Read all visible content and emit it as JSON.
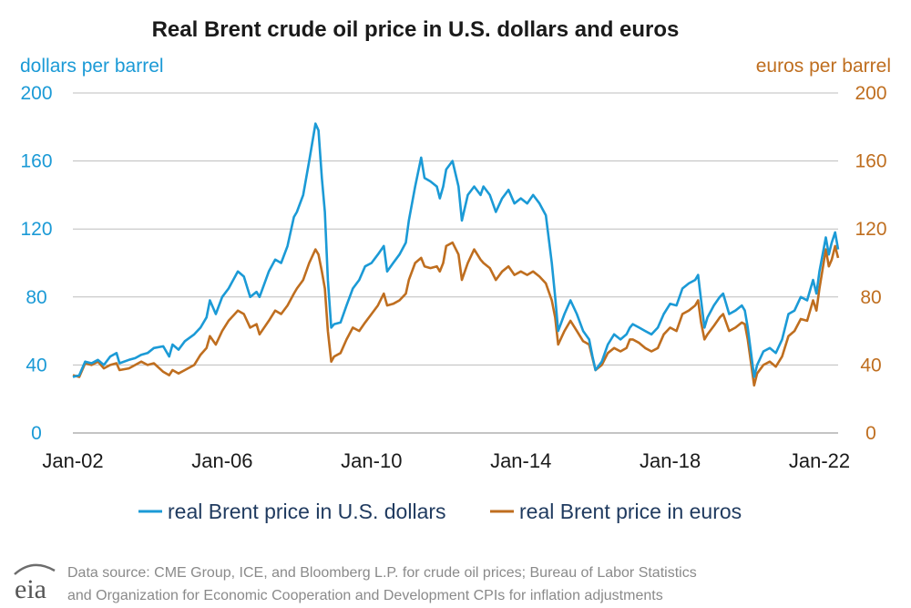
{
  "chart_data": {
    "type": "line",
    "title": "Real Brent crude oil price in U.S. dollars and euros",
    "y_left_label": "dollars per barrel",
    "y_right_label": "euros per barrel",
    "x_ticks": [
      "Jan-02",
      "Jan-06",
      "Jan-10",
      "Jan-14",
      "Jan-18",
      "Jan-22"
    ],
    "x_range": [
      2002.0,
      2022.5
    ],
    "y_ticks": [
      "0",
      "40",
      "80",
      "120",
      "160",
      "200"
    ],
    "ylim": [
      0,
      200
    ],
    "grid": true,
    "legend_position": "bottom",
    "colors": {
      "usd": "#1b9ad6",
      "eur": "#bf6e1f",
      "grid": "#bdbdbd",
      "left_axis": "#1b9ad6",
      "right_axis": "#bf6e1f"
    },
    "series": [
      {
        "name": "real Brent price in U.S. dollars",
        "key": "usd",
        "points": [
          [
            2002.0,
            33
          ],
          [
            2002.17,
            34
          ],
          [
            2002.33,
            42
          ],
          [
            2002.5,
            41
          ],
          [
            2002.67,
            43
          ],
          [
            2002.83,
            40
          ],
          [
            2003.0,
            45
          ],
          [
            2003.17,
            47
          ],
          [
            2003.25,
            41
          ],
          [
            2003.5,
            43
          ],
          [
            2003.67,
            44
          ],
          [
            2003.83,
            46
          ],
          [
            2004.0,
            47
          ],
          [
            2004.17,
            50
          ],
          [
            2004.42,
            51
          ],
          [
            2004.58,
            45
          ],
          [
            2004.67,
            52
          ],
          [
            2004.83,
            49
          ],
          [
            2005.0,
            54
          ],
          [
            2005.25,
            58
          ],
          [
            2005.42,
            62
          ],
          [
            2005.58,
            68
          ],
          [
            2005.67,
            78
          ],
          [
            2005.83,
            70
          ],
          [
            2006.0,
            80
          ],
          [
            2006.17,
            85
          ],
          [
            2006.42,
            95
          ],
          [
            2006.58,
            92
          ],
          [
            2006.75,
            80
          ],
          [
            2006.92,
            83
          ],
          [
            2007.0,
            80
          ],
          [
            2007.25,
            95
          ],
          [
            2007.42,
            102
          ],
          [
            2007.58,
            100
          ],
          [
            2007.75,
            110
          ],
          [
            2007.92,
            127
          ],
          [
            2008.0,
            130
          ],
          [
            2008.17,
            140
          ],
          [
            2008.33,
            160
          ],
          [
            2008.5,
            182
          ],
          [
            2008.58,
            178
          ],
          [
            2008.67,
            150
          ],
          [
            2008.75,
            130
          ],
          [
            2008.83,
            90
          ],
          [
            2008.92,
            62
          ],
          [
            2009.0,
            64
          ],
          [
            2009.17,
            65
          ],
          [
            2009.33,
            75
          ],
          [
            2009.5,
            85
          ],
          [
            2009.67,
            90
          ],
          [
            2009.83,
            98
          ],
          [
            2010.0,
            100
          ],
          [
            2010.17,
            105
          ],
          [
            2010.33,
            110
          ],
          [
            2010.42,
            95
          ],
          [
            2010.58,
            100
          ],
          [
            2010.75,
            105
          ],
          [
            2010.92,
            112
          ],
          [
            2011.0,
            125
          ],
          [
            2011.17,
            145
          ],
          [
            2011.33,
            162
          ],
          [
            2011.42,
            150
          ],
          [
            2011.58,
            148
          ],
          [
            2011.75,
            145
          ],
          [
            2011.83,
            138
          ],
          [
            2011.92,
            145
          ],
          [
            2012.0,
            155
          ],
          [
            2012.17,
            160
          ],
          [
            2012.33,
            145
          ],
          [
            2012.42,
            125
          ],
          [
            2012.58,
            140
          ],
          [
            2012.75,
            145
          ],
          [
            2012.92,
            140
          ],
          [
            2013.0,
            145
          ],
          [
            2013.17,
            140
          ],
          [
            2013.33,
            130
          ],
          [
            2013.5,
            138
          ],
          [
            2013.67,
            143
          ],
          [
            2013.83,
            135
          ],
          [
            2014.0,
            138
          ],
          [
            2014.17,
            135
          ],
          [
            2014.33,
            140
          ],
          [
            2014.5,
            135
          ],
          [
            2014.67,
            128
          ],
          [
            2014.83,
            100
          ],
          [
            2014.92,
            80
          ],
          [
            2015.0,
            60
          ],
          [
            2015.17,
            70
          ],
          [
            2015.33,
            78
          ],
          [
            2015.5,
            70
          ],
          [
            2015.67,
            60
          ],
          [
            2015.83,
            55
          ],
          [
            2015.92,
            45
          ],
          [
            2016.0,
            37
          ],
          [
            2016.17,
            42
          ],
          [
            2016.33,
            52
          ],
          [
            2016.5,
            58
          ],
          [
            2016.67,
            55
          ],
          [
            2016.83,
            58
          ],
          [
            2016.92,
            62
          ],
          [
            2017.0,
            64
          ],
          [
            2017.17,
            62
          ],
          [
            2017.33,
            60
          ],
          [
            2017.5,
            58
          ],
          [
            2017.67,
            62
          ],
          [
            2017.83,
            70
          ],
          [
            2018.0,
            76
          ],
          [
            2018.17,
            75
          ],
          [
            2018.33,
            85
          ],
          [
            2018.5,
            88
          ],
          [
            2018.67,
            90
          ],
          [
            2018.75,
            93
          ],
          [
            2018.83,
            78
          ],
          [
            2018.92,
            62
          ],
          [
            2019.0,
            68
          ],
          [
            2019.17,
            75
          ],
          [
            2019.33,
            80
          ],
          [
            2019.42,
            82
          ],
          [
            2019.58,
            70
          ],
          [
            2019.75,
            72
          ],
          [
            2019.92,
            75
          ],
          [
            2020.0,
            72
          ],
          [
            2020.08,
            62
          ],
          [
            2020.25,
            33
          ],
          [
            2020.33,
            40
          ],
          [
            2020.5,
            48
          ],
          [
            2020.67,
            50
          ],
          [
            2020.83,
            47
          ],
          [
            2021.0,
            55
          ],
          [
            2021.17,
            70
          ],
          [
            2021.33,
            72
          ],
          [
            2021.5,
            80
          ],
          [
            2021.67,
            78
          ],
          [
            2021.83,
            90
          ],
          [
            2021.92,
            82
          ],
          [
            2022.0,
            95
          ],
          [
            2022.17,
            115
          ],
          [
            2022.25,
            105
          ],
          [
            2022.33,
            112
          ],
          [
            2022.42,
            118
          ],
          [
            2022.5,
            108
          ]
        ]
      },
      {
        "name": "real Brent price in euros",
        "key": "eur",
        "points": [
          [
            2002.0,
            34
          ],
          [
            2002.17,
            33
          ],
          [
            2002.33,
            41
          ],
          [
            2002.5,
            40
          ],
          [
            2002.67,
            42
          ],
          [
            2002.83,
            38
          ],
          [
            2003.0,
            40
          ],
          [
            2003.17,
            41
          ],
          [
            2003.25,
            37
          ],
          [
            2003.5,
            38
          ],
          [
            2003.67,
            40
          ],
          [
            2003.83,
            42
          ],
          [
            2004.0,
            40
          ],
          [
            2004.17,
            41
          ],
          [
            2004.42,
            36
          ],
          [
            2004.58,
            34
          ],
          [
            2004.67,
            37
          ],
          [
            2004.83,
            35
          ],
          [
            2005.0,
            37
          ],
          [
            2005.25,
            40
          ],
          [
            2005.42,
            46
          ],
          [
            2005.58,
            50
          ],
          [
            2005.67,
            57
          ],
          [
            2005.83,
            52
          ],
          [
            2006.0,
            60
          ],
          [
            2006.17,
            66
          ],
          [
            2006.42,
            72
          ],
          [
            2006.58,
            70
          ],
          [
            2006.75,
            62
          ],
          [
            2006.92,
            64
          ],
          [
            2007.0,
            58
          ],
          [
            2007.25,
            66
          ],
          [
            2007.42,
            72
          ],
          [
            2007.58,
            70
          ],
          [
            2007.75,
            75
          ],
          [
            2007.92,
            82
          ],
          [
            2008.0,
            85
          ],
          [
            2008.17,
            90
          ],
          [
            2008.33,
            100
          ],
          [
            2008.5,
            108
          ],
          [
            2008.58,
            105
          ],
          [
            2008.67,
            95
          ],
          [
            2008.75,
            85
          ],
          [
            2008.83,
            60
          ],
          [
            2008.92,
            42
          ],
          [
            2009.0,
            45
          ],
          [
            2009.17,
            47
          ],
          [
            2009.33,
            55
          ],
          [
            2009.5,
            62
          ],
          [
            2009.67,
            60
          ],
          [
            2009.83,
            65
          ],
          [
            2010.0,
            70
          ],
          [
            2010.17,
            75
          ],
          [
            2010.33,
            82
          ],
          [
            2010.42,
            75
          ],
          [
            2010.58,
            76
          ],
          [
            2010.75,
            78
          ],
          [
            2010.92,
            82
          ],
          [
            2011.0,
            90
          ],
          [
            2011.17,
            100
          ],
          [
            2011.33,
            103
          ],
          [
            2011.42,
            98
          ],
          [
            2011.58,
            97
          ],
          [
            2011.75,
            98
          ],
          [
            2011.83,
            95
          ],
          [
            2011.92,
            100
          ],
          [
            2012.0,
            110
          ],
          [
            2012.17,
            112
          ],
          [
            2012.33,
            105
          ],
          [
            2012.42,
            90
          ],
          [
            2012.58,
            100
          ],
          [
            2012.75,
            108
          ],
          [
            2012.92,
            102
          ],
          [
            2013.0,
            100
          ],
          [
            2013.17,
            97
          ],
          [
            2013.33,
            90
          ],
          [
            2013.5,
            95
          ],
          [
            2013.67,
            98
          ],
          [
            2013.83,
            93
          ],
          [
            2014.0,
            95
          ],
          [
            2014.17,
            93
          ],
          [
            2014.33,
            95
          ],
          [
            2014.5,
            92
          ],
          [
            2014.67,
            88
          ],
          [
            2014.83,
            78
          ],
          [
            2014.92,
            68
          ],
          [
            2015.0,
            52
          ],
          [
            2015.17,
            60
          ],
          [
            2015.33,
            66
          ],
          [
            2015.5,
            60
          ],
          [
            2015.67,
            54
          ],
          [
            2015.83,
            52
          ],
          [
            2015.92,
            44
          ],
          [
            2016.0,
            37
          ],
          [
            2016.17,
            40
          ],
          [
            2016.33,
            47
          ],
          [
            2016.5,
            50
          ],
          [
            2016.67,
            48
          ],
          [
            2016.83,
            50
          ],
          [
            2016.92,
            55
          ],
          [
            2017.0,
            55
          ],
          [
            2017.17,
            53
          ],
          [
            2017.33,
            50
          ],
          [
            2017.5,
            48
          ],
          [
            2017.67,
            50
          ],
          [
            2017.83,
            58
          ],
          [
            2018.0,
            62
          ],
          [
            2018.17,
            60
          ],
          [
            2018.33,
            70
          ],
          [
            2018.5,
            72
          ],
          [
            2018.67,
            75
          ],
          [
            2018.75,
            78
          ],
          [
            2018.83,
            65
          ],
          [
            2018.92,
            55
          ],
          [
            2019.0,
            58
          ],
          [
            2019.17,
            63
          ],
          [
            2019.33,
            68
          ],
          [
            2019.42,
            70
          ],
          [
            2019.58,
            60
          ],
          [
            2019.75,
            62
          ],
          [
            2019.92,
            65
          ],
          [
            2020.0,
            64
          ],
          [
            2020.08,
            55
          ],
          [
            2020.25,
            28
          ],
          [
            2020.33,
            35
          ],
          [
            2020.5,
            40
          ],
          [
            2020.67,
            42
          ],
          [
            2020.83,
            39
          ],
          [
            2021.0,
            45
          ],
          [
            2021.17,
            57
          ],
          [
            2021.33,
            60
          ],
          [
            2021.5,
            67
          ],
          [
            2021.67,
            66
          ],
          [
            2021.83,
            78
          ],
          [
            2021.92,
            72
          ],
          [
            2022.0,
            85
          ],
          [
            2022.17,
            108
          ],
          [
            2022.25,
            98
          ],
          [
            2022.33,
            102
          ],
          [
            2022.42,
            110
          ],
          [
            2022.5,
            103
          ]
        ]
      }
    ]
  },
  "source": {
    "line1": "Data source: CME Group, ICE, and Bloomberg L.P. for crude oil prices; Bureau of Labor Statistics",
    "line2": "and Organization for Economic Cooperation and Development CPIs for inflation adjustments"
  },
  "logo": {
    "text": "eia",
    "icon": "eia-logo-icon"
  }
}
